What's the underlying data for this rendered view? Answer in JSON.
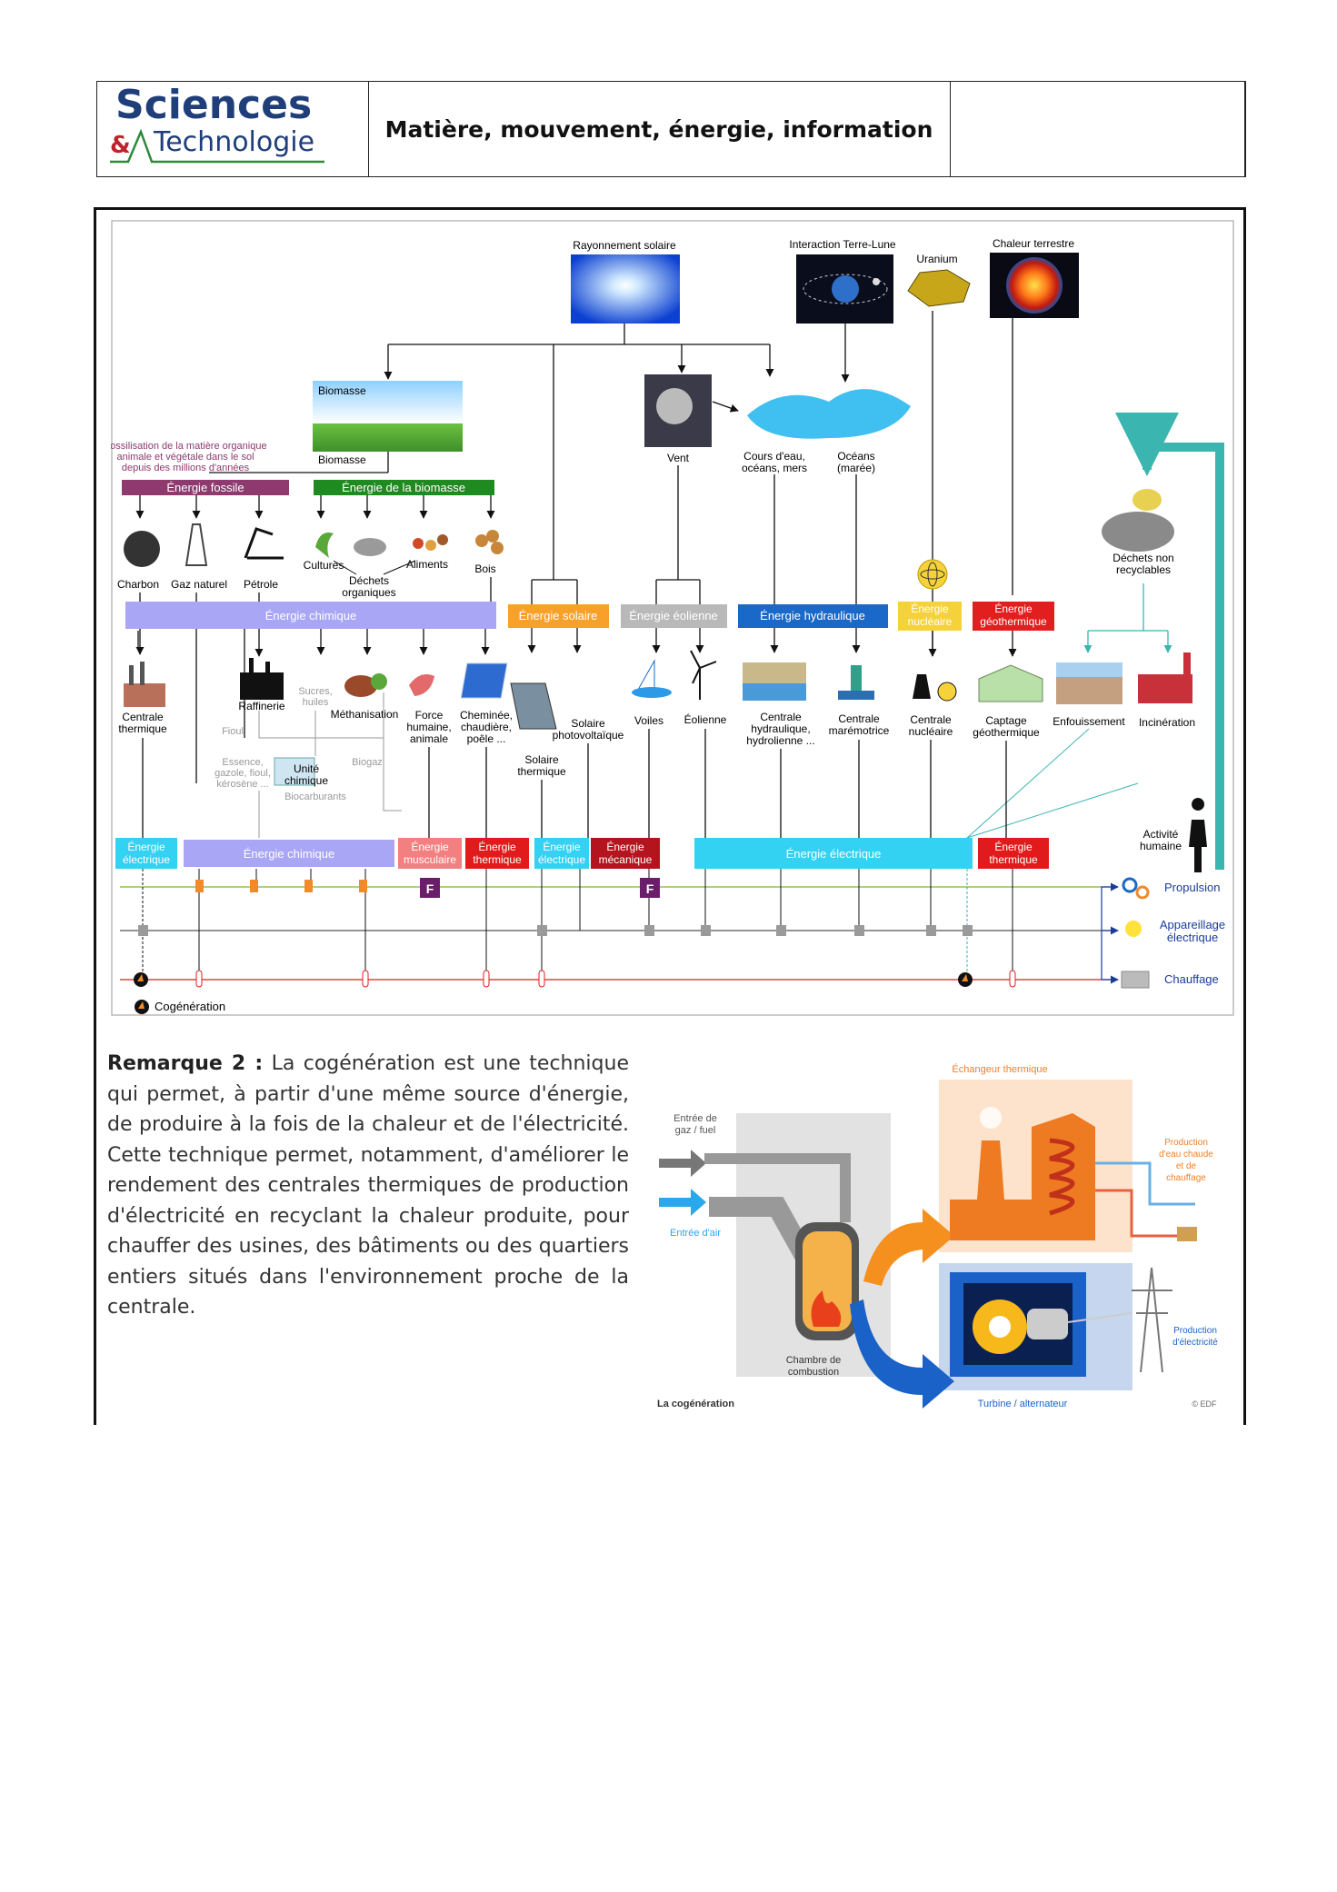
{
  "header": {
    "logo_top": "Sciences",
    "logo_bottom": "Technologie",
    "logo_amp": "&",
    "title": "Matière, mouvement, énergie, information"
  },
  "sources": {
    "solar": "Rayonnement solaire",
    "earth_moon": "Interaction Terre-Lune",
    "uranium": "Uranium",
    "geo_heat": "Chaleur terrestre"
  },
  "middle": {
    "biomasse_top": "Biomasse",
    "biomasse_bottom": "Biomasse",
    "vent": "Vent",
    "cours_eau_1": "Cours d'eau,",
    "cours_eau_2": "océans, mers",
    "oceans_1": "Océans",
    "oceans_2": "(marée)",
    "fossil_note_1": "Fossilisation de la matière organique",
    "fossil_note_2": "animale et végétale dans le sol",
    "fossil_note_3": "depuis des millions d'années",
    "dechets_nr_1": "Déchets non",
    "dechets_nr_2": "recyclables"
  },
  "bands": {
    "fossile": "Énergie fossile",
    "biomasse": "Énergie de la biomasse",
    "chimique": "Énergie chimique",
    "solaire": "Énergie solaire",
    "eolienne": "Énergie éolienne",
    "hydraulique": "Énergie hydraulique",
    "nucleaire_1": "Énergie",
    "nucleaire_2": "nucléaire",
    "geothermique_1": "Énergie",
    "geothermique_2": "géothermique"
  },
  "resources": {
    "charbon": "Charbon",
    "gaz": "Gaz naturel",
    "petrole": "Pétrole",
    "cultures": "Cultures",
    "aliments": "Aliments",
    "bois": "Bois",
    "dechets_org_1": "Déchets",
    "dechets_org_2": "organiques"
  },
  "converters": {
    "centrale_th_1": "Centrale",
    "centrale_th_2": "thermique",
    "raffinerie": "Raffinerie",
    "sucres_1": "Sucres,",
    "sucres_2": "huiles",
    "methanisation": "Méthanisation",
    "force_1": "Force",
    "force_2": "humaine,",
    "force_3": "animale",
    "cheminee_1": "Cheminée,",
    "cheminee_2": "chaudière,",
    "cheminee_3": "poêle ...",
    "solaire_pv_1": "Solaire",
    "solaire_pv_2": "photovoltaïque",
    "solaire_th_1": "Solaire",
    "solaire_th_2": "thermique",
    "voiles": "Voiles",
    "eolienne": "Éolienne",
    "hydro_1": "Centrale",
    "hydro_2": "hydraulique,",
    "hydro_3": "hydrolienne ...",
    "maremotrice_1": "Centrale",
    "maremotrice_2": "marémotrice",
    "nucleaire_1": "Centrale",
    "nucleaire_2": "nucléaire",
    "geo_1": "Captage",
    "geo_2": "géothermique",
    "enfouissement": "Enfouissement",
    "incineration": "Incinération",
    "fioul": "Fioul",
    "essence_1": "Essence,",
    "essence_2": "gazole, fioul,",
    "essence_3": "kérosène ...",
    "unite_1": "Unité",
    "unite_2": "chimique",
    "biocarburants": "Biocarburants",
    "biogaz": "Biogaz",
    "activite_1": "Activité",
    "activite_2": "humaine"
  },
  "outputs": {
    "elec_1": "Énergie",
    "elec_2": "électrique",
    "chimique": "Énergie chimique",
    "musc_1": "Énergie",
    "musc_2": "musculaire",
    "therm_1": "Énergie",
    "therm_2": "thermique",
    "elec2_1": "Énergie",
    "elec2_2": "électrique",
    "meca_1": "Énergie",
    "meca_2": "mécanique",
    "electrique": "Énergie électrique",
    "therm3_1": "Énergie",
    "therm3_2": "thermique"
  },
  "uses": {
    "propulsion": "Propulsion",
    "appareil_1": "Appareillage",
    "appareil_2": "électrique",
    "chauffage": "Chauffage",
    "cogeneration": "Cogénération",
    "f_glyph": "F"
  },
  "remark": {
    "label": "Remarque 2 :",
    "text": "La cogénération est une technique qui permet, à partir d'une même source d'énergie, de produire à la fois de la chaleur et de l'électricité. Cette technique permet, notamment, d'améliorer le rendement des centrales thermiques de production d'électricité en recyclant la chaleur produite, pour chauffer des usines, des bâtiments ou des quartiers entiers situés dans l'environnement proche de la centrale."
  },
  "cogen_figure": {
    "echangeur": "Échangeur thermique",
    "entree_gaz_1": "Entrée de",
    "entree_gaz_2": "gaz / fuel",
    "entree_air": "Entrée d'air",
    "prod_eau_1": "Production",
    "prod_eau_2": "d'eau chaude",
    "prod_eau_3": "et de",
    "prod_eau_4": "chauffage",
    "chambre_1": "Chambre de",
    "chambre_2": "combustion",
    "prod_elec_1": "Production",
    "prod_elec_2": "d'électricité",
    "caption": "La cogénération",
    "turbine": "Turbine / alternateur",
    "credit": "© EDF"
  },
  "colors": {
    "fossile": "#8e3a6e",
    "biomasse": "#1f8a1f",
    "chimique": "#a9a6f5",
    "solaire": "#f7a12a",
    "eolienne": "#b9b9b9",
    "hydraulique": "#1a68c8",
    "nucleaire": "#f6d23a",
    "geothermique": "#e21e1e",
    "electrique": "#33d1f2",
    "musculaire": "#f28080",
    "thermique": "#e11b1b",
    "mecanique": "#b4141e",
    "activite": "#3ab5b0"
  }
}
